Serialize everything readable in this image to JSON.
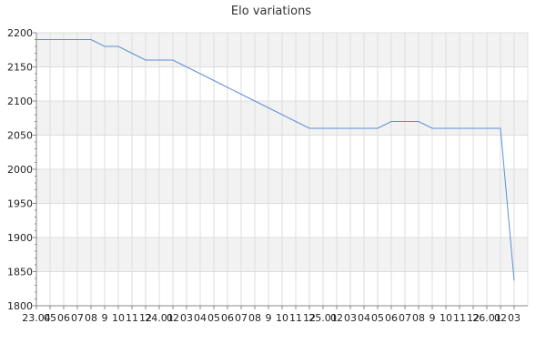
{
  "chart_data": {
    "type": "line",
    "title": "Elo variations",
    "xlabel": "",
    "ylabel": "",
    "ylim": [
      1800,
      2200
    ],
    "yticks": [
      1800,
      1850,
      1900,
      1950,
      2000,
      2050,
      2100,
      2150,
      2200
    ],
    "xtick_labels": [
      "23.04",
      "05",
      "06",
      "07",
      "08",
      "9",
      "10",
      "11",
      "12",
      "24.01",
      "02",
      "03",
      "04",
      "05",
      "06",
      "07",
      "08",
      "9",
      "10",
      "11",
      "12",
      "25.01",
      "02",
      "03",
      "04",
      "05",
      "06",
      "07",
      "08",
      "9",
      "10",
      "11",
      "12",
      "26.01",
      "02",
      "03"
    ],
    "grid": true,
    "colors": {
      "line": "#5b8fd6",
      "band": "#f2f2f2",
      "grid": "#dddddd"
    },
    "series": [
      {
        "values": [
          2190,
          2190,
          2190,
          2190,
          2190,
          2180,
          2180,
          2170,
          2160,
          2160,
          2160,
          2150,
          2140,
          2130,
          2120,
          2110,
          2100,
          2090,
          2080,
          2070,
          2060,
          2060,
          2060,
          2060,
          2060,
          2060,
          2070,
          2070,
          2070,
          2060,
          2060,
          2060,
          2060,
          2060,
          2060,
          1837
        ]
      }
    ]
  }
}
